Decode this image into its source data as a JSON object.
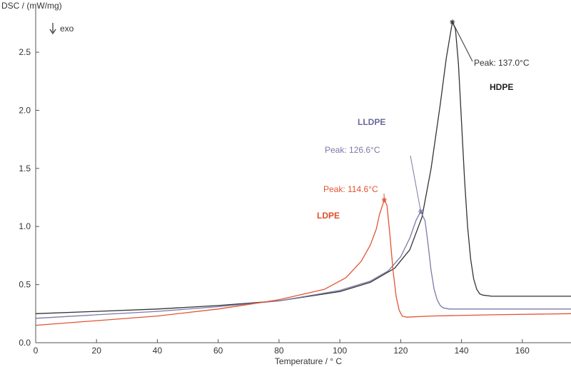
{
  "chart_data": {
    "type": "line",
    "title": "",
    "ylabel": "DSC / (mW/mg)",
    "xlabel": "Temperature / ° C",
    "direction_note": "exo",
    "direction_icon": "down-arrow-icon",
    "xlim": [
      0,
      176
    ],
    "ylim": [
      0,
      2.9
    ],
    "x_ticks": [
      0,
      20,
      40,
      60,
      80,
      100,
      120,
      140,
      160
    ],
    "y_ticks": [
      0.0,
      0.5,
      1.0,
      1.5,
      2.0,
      2.5
    ],
    "y_tick_labels": [
      "0.0",
      "0.5",
      "1.0",
      "1.5",
      "2.0",
      "2.5"
    ],
    "grid": false,
    "series": [
      {
        "name": "HDPE",
        "color": "#333333",
        "label_color": "#222222",
        "peak": {
          "x": 137.0,
          "y": 2.76,
          "label": "Peak: 137.0°C"
        },
        "points": [
          [
            0,
            0.25
          ],
          [
            20,
            0.27
          ],
          [
            40,
            0.29
          ],
          [
            60,
            0.32
          ],
          [
            80,
            0.36
          ],
          [
            100,
            0.44
          ],
          [
            110,
            0.52
          ],
          [
            118,
            0.64
          ],
          [
            123,
            0.8
          ],
          [
            127,
            1.08
          ],
          [
            130,
            1.5
          ],
          [
            133,
            2.05
          ],
          [
            135,
            2.45
          ],
          [
            137,
            2.76
          ],
          [
            138,
            2.7
          ],
          [
            139,
            2.4
          ],
          [
            140,
            1.9
          ],
          [
            141,
            1.4
          ],
          [
            142,
            1.0
          ],
          [
            143,
            0.72
          ],
          [
            144,
            0.55
          ],
          [
            145,
            0.46
          ],
          [
            146,
            0.42
          ],
          [
            147,
            0.41
          ],
          [
            150,
            0.4
          ],
          [
            160,
            0.4
          ],
          [
            176,
            0.4
          ]
        ]
      },
      {
        "name": "LLDPE",
        "color": "#7a7aa8",
        "label_color": "#6a6a9a",
        "peak": {
          "x": 126.6,
          "y": 1.13,
          "label": "Peak: 126.6°C"
        },
        "points": [
          [
            0,
            0.21
          ],
          [
            20,
            0.24
          ],
          [
            40,
            0.27
          ],
          [
            60,
            0.31
          ],
          [
            80,
            0.36
          ],
          [
            100,
            0.45
          ],
          [
            110,
            0.53
          ],
          [
            116,
            0.62
          ],
          [
            120,
            0.74
          ],
          [
            123,
            0.9
          ],
          [
            125,
            1.05
          ],
          [
            126.6,
            1.13
          ],
          [
            128,
            1.05
          ],
          [
            129,
            0.85
          ],
          [
            130,
            0.62
          ],
          [
            131,
            0.46
          ],
          [
            132,
            0.37
          ],
          [
            133,
            0.32
          ],
          [
            134,
            0.3
          ],
          [
            136,
            0.29
          ],
          [
            150,
            0.29
          ],
          [
            176,
            0.29
          ]
        ]
      },
      {
        "name": "LDPE",
        "color": "#e05533",
        "label_color": "#e0502a",
        "peak": {
          "x": 114.6,
          "y": 1.23,
          "label": "Peak: 114.6°C"
        },
        "points": [
          [
            0,
            0.15
          ],
          [
            20,
            0.19
          ],
          [
            40,
            0.23
          ],
          [
            60,
            0.29
          ],
          [
            80,
            0.37
          ],
          [
            95,
            0.46
          ],
          [
            102,
            0.56
          ],
          [
            107,
            0.7
          ],
          [
            110,
            0.84
          ],
          [
            112,
            0.98
          ],
          [
            113,
            1.1
          ],
          [
            114.6,
            1.23
          ],
          [
            115.5,
            1.18
          ],
          [
            116.5,
            0.92
          ],
          [
            117.5,
            0.62
          ],
          [
            118.5,
            0.4
          ],
          [
            119.5,
            0.28
          ],
          [
            120.5,
            0.23
          ],
          [
            122,
            0.22
          ],
          [
            130,
            0.23
          ],
          [
            150,
            0.24
          ],
          [
            176,
            0.25
          ]
        ]
      }
    ]
  }
}
